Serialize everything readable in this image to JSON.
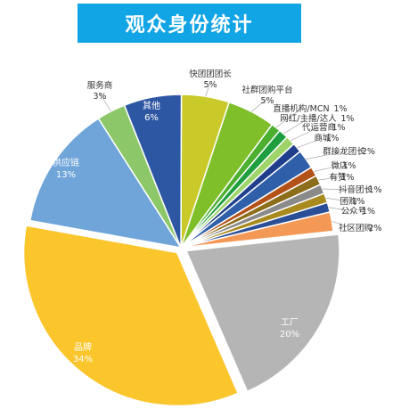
{
  "title": "观众身份统计",
  "chart_data": {
    "type": "pie",
    "title": "观众身份统计",
    "slices": [
      {
        "name": "快团团团长",
        "value": 5,
        "value_label": "5%",
        "color": "#c9c92a"
      },
      {
        "name": "社群团购平台",
        "value": 5,
        "value_label": "5%",
        "color": "#7fbf2a"
      },
      {
        "name": "直播机构/MCN",
        "value": 1,
        "value_label": "1%",
        "color": "#4caf2e"
      },
      {
        "name": "网红/主播/达人",
        "value": 1,
        "value_label": "1%",
        "color": "#1e9e3e"
      },
      {
        "name": "代运营商",
        "value": 1,
        "value_label": "1%",
        "color": "#9fd46a"
      },
      {
        "name": "商城",
        "value": 1,
        "value_label": "1%",
        "color": "#1f3f8c"
      },
      {
        "name": "群接龙团长",
        "value": 2,
        "value_label": "2%",
        "color": "#2e5fa8"
      },
      {
        "name": "微店",
        "value": 1,
        "value_label": "1%",
        "color": "#b35218"
      },
      {
        "name": "有赞",
        "value": 1,
        "value_label": "1%",
        "color": "#8c6d1a"
      },
      {
        "name": "抖音团长",
        "value": 1,
        "value_label": "1%",
        "color": "#8a8a8a"
      },
      {
        "name": "团购",
        "value": 1,
        "value_label": "1%",
        "color": "#a88a1e"
      },
      {
        "name": "公众号",
        "value": 1,
        "value_label": "1%",
        "color": "#2a4f96"
      },
      {
        "name": "社区团购",
        "value": 2,
        "value_label": "2%",
        "color": "#f49855"
      },
      {
        "name": "工厂",
        "value": 20,
        "value_label": "20%",
        "color": "#b5b5b5"
      },
      {
        "name": "品牌",
        "value": 34,
        "value_label": "34%",
        "color": "#fbc52c"
      },
      {
        "name": "供应链",
        "value": 13,
        "value_label": "13%",
        "color": "#6fa5d9"
      },
      {
        "name": "服务商",
        "value": 3,
        "value_label": "3%",
        "color": "#8cc86a"
      },
      {
        "name": "其他",
        "value": 6,
        "value_label": "6%",
        "color": "#2e57a3"
      }
    ]
  }
}
